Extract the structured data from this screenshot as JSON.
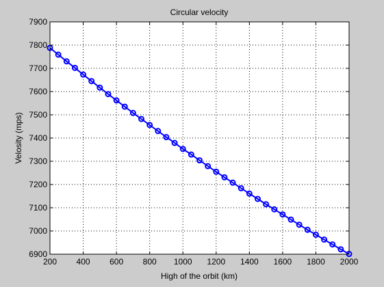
{
  "chart_data": {
    "type": "line",
    "title": "Circular velocity",
    "xlabel": "High of the orbit (km)",
    "ylabel": "Velosity (mps)",
    "xlim": [
      200,
      2000
    ],
    "ylim": [
      6900,
      7900
    ],
    "xticks": [
      200,
      400,
      600,
      800,
      1000,
      1200,
      1400,
      1600,
      1800,
      2000
    ],
    "yticks": [
      6900,
      7000,
      7100,
      7200,
      7300,
      7400,
      7500,
      7600,
      7700,
      7800,
      7900
    ],
    "grid": true,
    "series": [
      {
        "marker": "circle",
        "color": "#0000ff",
        "x": [
          200,
          250,
          300,
          350,
          400,
          450,
          500,
          550,
          600,
          650,
          700,
          750,
          800,
          850,
          900,
          950,
          1000,
          1050,
          1100,
          1150,
          1200,
          1250,
          1300,
          1350,
          1400,
          1450,
          1500,
          1550,
          1600,
          1650,
          1700,
          1750,
          1800,
          1850,
          1900,
          1950,
          2000
        ],
        "y": [
          7788,
          7759,
          7730,
          7702,
          7673,
          7645,
          7617,
          7589,
          7562,
          7535,
          7508,
          7482,
          7456,
          7430,
          7404,
          7379,
          7353,
          7329,
          7304,
          7279,
          7255,
          7231,
          7208,
          7184,
          7161,
          7138,
          7115,
          7093,
          7071,
          7049,
          7027,
          7005,
          6984,
          6963,
          6942,
          6921,
          6901
        ]
      }
    ]
  }
}
